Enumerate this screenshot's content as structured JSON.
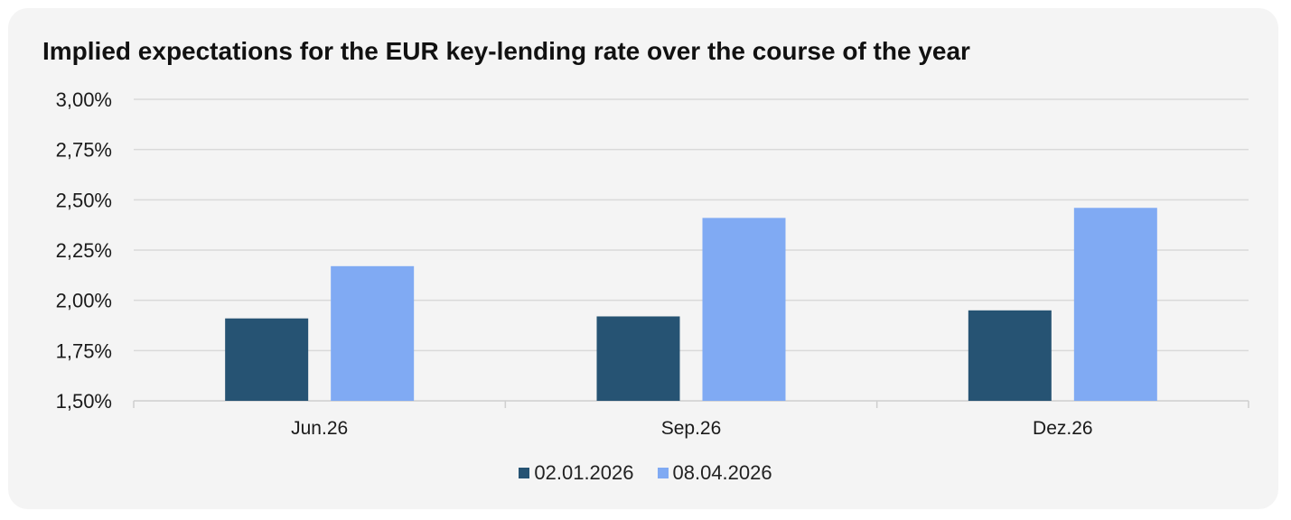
{
  "chart_data": {
    "type": "bar",
    "title": "Implied expectations for the EUR key-lending rate over the course of the year",
    "categories": [
      "Jun.26",
      "Sep.26",
      "Dez.26"
    ],
    "series": [
      {
        "name": "02.01.2026",
        "color": "#265373",
        "values": [
          1.91,
          1.92,
          1.95
        ]
      },
      {
        "name": "08.04.2026",
        "color": "#80aaf3",
        "values": [
          2.17,
          2.41,
          2.46
        ]
      }
    ],
    "ylim": [
      1.5,
      3.0
    ],
    "yticks": [
      "1,50%",
      "1,75%",
      "2,00%",
      "2,25%",
      "2,50%",
      "2,75%",
      "3,00%"
    ],
    "ytick_values": [
      1.5,
      1.75,
      2.0,
      2.25,
      2.5,
      2.75,
      3.0
    ],
    "grid": true,
    "legend_position": "bottom"
  }
}
